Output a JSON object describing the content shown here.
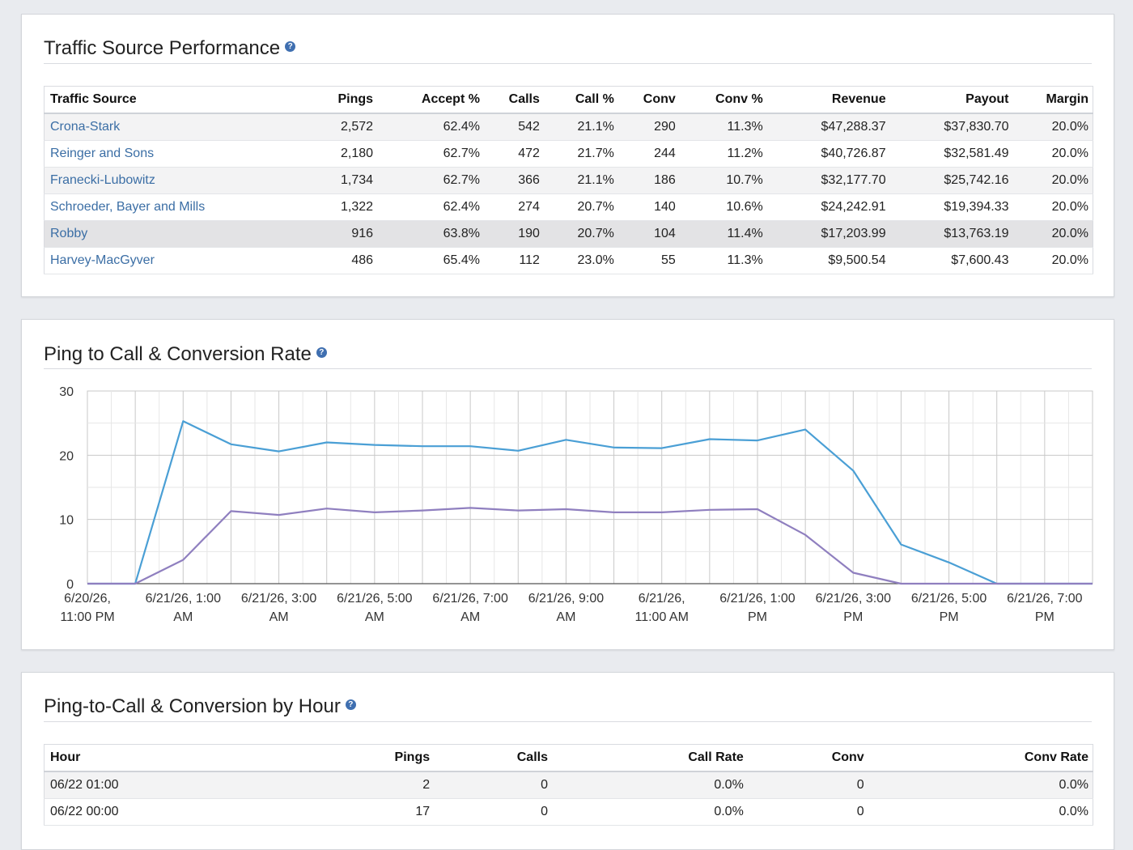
{
  "traffic_panel": {
    "title": "Traffic Source Performance",
    "help_icon": "question-circle-icon",
    "columns": [
      "Traffic Source",
      "Pings",
      "Accept %",
      "Calls",
      "Call %",
      "Conv",
      "Conv %",
      "Revenue",
      "Payout",
      "Margin"
    ],
    "rows": [
      [
        "Crona-Stark",
        "2,572",
        "62.4%",
        "542",
        "21.1%",
        "290",
        "11.3%",
        "$47,288.37",
        "$37,830.70",
        "20.0%"
      ],
      [
        "Reinger and Sons",
        "2,180",
        "62.7%",
        "472",
        "21.7%",
        "244",
        "11.2%",
        "$40,726.87",
        "$32,581.49",
        "20.0%"
      ],
      [
        "Franecki-Lubowitz",
        "1,734",
        "62.7%",
        "366",
        "21.1%",
        "186",
        "10.7%",
        "$32,177.70",
        "$25,742.16",
        "20.0%"
      ],
      [
        "Schroeder, Bayer and Mills",
        "1,322",
        "62.4%",
        "274",
        "20.7%",
        "140",
        "10.6%",
        "$24,242.91",
        "$19,394.33",
        "20.0%"
      ],
      [
        "Robby",
        "916",
        "63.8%",
        "190",
        "20.7%",
        "104",
        "11.4%",
        "$17,203.99",
        "$13,763.19",
        "20.0%"
      ],
      [
        "Harvey-MacGyver",
        "486",
        "65.4%",
        "112",
        "23.0%",
        "55",
        "11.3%",
        "$9,500.54",
        "$7,600.43",
        "20.0%"
      ]
    ]
  },
  "chart_panel": {
    "title": "Ping to Call & Conversion Rate",
    "help_icon": "question-circle-icon"
  },
  "chart_data": {
    "type": "line",
    "title": "Ping to Call & Conversion Rate",
    "xlabel": "",
    "ylabel": "",
    "ylim": [
      0,
      30
    ],
    "y_ticks": [
      "0",
      "10",
      "20",
      "30"
    ],
    "x_tick_labels": [
      [
        "6/20/26,",
        "11:00 PM"
      ],
      [
        "6/21/26, 1:00",
        "AM"
      ],
      [
        "6/21/26, 3:00",
        "AM"
      ],
      [
        "6/21/26, 5:00",
        "AM"
      ],
      [
        "6/21/26, 7:00",
        "AM"
      ],
      [
        "6/21/26, 9:00",
        "AM"
      ],
      [
        "6/21/26,",
        "11:00 AM"
      ],
      [
        "6/21/26, 1:00",
        "PM"
      ],
      [
        "6/21/26, 3:00",
        "PM"
      ],
      [
        "6/21/26, 5:00",
        "PM"
      ],
      [
        "6/21/26, 7:00",
        "PM"
      ]
    ],
    "x": [
      "6/20/26 23:00",
      "6/21/26 00:00",
      "6/21/26 01:00",
      "6/21/26 02:00",
      "6/21/26 03:00",
      "6/21/26 04:00",
      "6/21/26 05:00",
      "6/21/26 06:00",
      "6/21/26 07:00",
      "6/21/26 08:00",
      "6/21/26 09:00",
      "6/21/26 10:00",
      "6/21/26 11:00",
      "6/21/26 12:00",
      "6/21/26 13:00",
      "6/21/26 14:00",
      "6/21/26 15:00",
      "6/21/26 16:00",
      "6/21/26 17:00",
      "6/21/26 18:00",
      "6/21/26 19:00",
      "6/21/26 20:00"
    ],
    "series": [
      {
        "color": "#4a9fd5",
        "values": [
          0,
          0,
          25.3,
          21.7,
          20.6,
          22.0,
          21.6,
          21.4,
          21.4,
          20.7,
          22.4,
          21.2,
          21.1,
          22.5,
          22.3,
          24.0,
          17.6,
          6.1,
          3.3,
          0,
          0,
          0
        ]
      },
      {
        "color": "#8f7fbf",
        "values": [
          0,
          0,
          3.7,
          11.3,
          10.7,
          11.7,
          11.1,
          11.4,
          11.8,
          11.4,
          11.6,
          11.1,
          11.1,
          11.5,
          11.6,
          7.6,
          1.7,
          0,
          0,
          0,
          0,
          0
        ]
      }
    ],
    "grid": true,
    "legend": "none"
  },
  "hour_panel": {
    "title": "Ping-to-Call & Conversion by Hour",
    "help_icon": "question-circle-icon",
    "columns": [
      "Hour",
      "Pings",
      "Calls",
      "Call Rate",
      "Conv",
      "Conv Rate"
    ],
    "rows": [
      [
        "06/22 01:00",
        "2",
        "0",
        "0.0%",
        "0",
        "0.0%"
      ],
      [
        "06/22 00:00",
        "17",
        "0",
        "0.0%",
        "0",
        "0.0%"
      ]
    ]
  }
}
